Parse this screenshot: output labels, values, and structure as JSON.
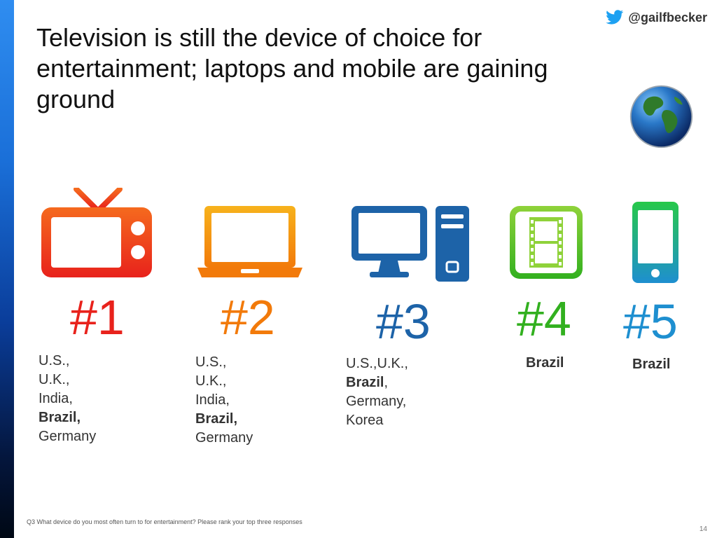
{
  "handle": {
    "text": "@gailfbecker",
    "icon": "twitter-bird-icon",
    "color": "#1da1f2"
  },
  "title": "Television is still the device of choice for entertainment; laptops and mobile are gaining ground",
  "globe_icon": "globe-icon",
  "rankings": [
    {
      "device_icon": "tv-icon",
      "rank": "#1",
      "color": "#e8221c",
      "countries_line1": "U.S., U.K., India,",
      "countries_bold": "Brazil,",
      "countries_rest": " Germany"
    },
    {
      "device_icon": "laptop-icon",
      "rank": "#2",
      "color": "#f27a0a",
      "countries_line1": "U.S., U.K., India,",
      "countries_bold": "Brazil,",
      "countries_rest": " Germany"
    },
    {
      "device_icon": "desktop-computer-icon",
      "rank": "#3",
      "color": "#1d63a8",
      "countries_pre": "U.S.,U.K., ",
      "countries_bold": "Brazil",
      "countries_post": ",",
      "countries_line2": "Germany, Korea"
    },
    {
      "device_icon": "film-tablet-icon",
      "rank": "#4",
      "color": "#32b01f",
      "countries_bold": "Brazil"
    },
    {
      "device_icon": "smartphone-icon",
      "rank": "#5",
      "color": "#1e8fd0",
      "countries_bold": "Brazil"
    }
  ],
  "footnote": "Q3 What device do you most often turn to for entertainment? Please rank your top three responses",
  "page_number": "14"
}
